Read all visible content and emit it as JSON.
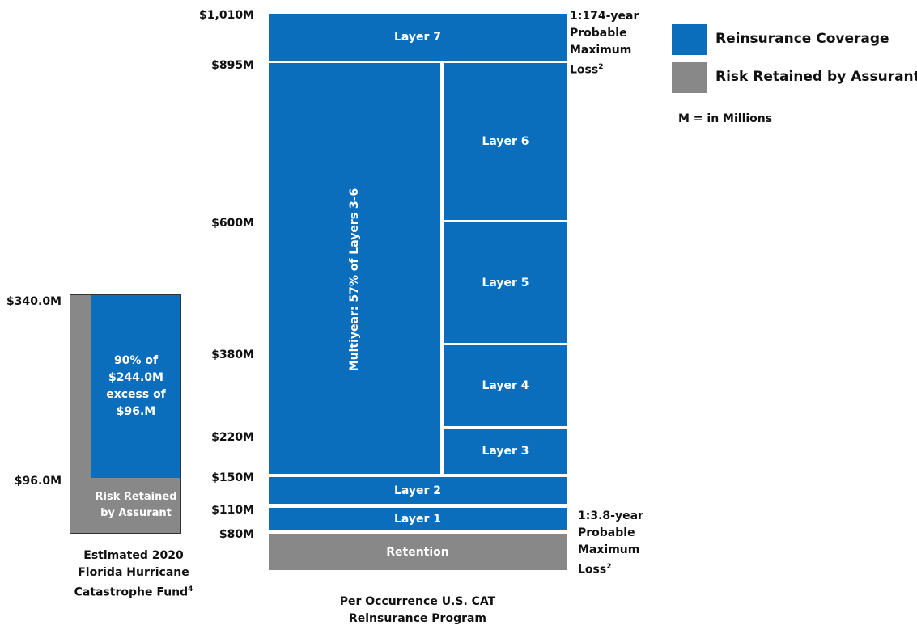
{
  "legend": {
    "items": [
      {
        "label": "Reinsurance Coverage",
        "color": "#0a6ebd"
      },
      {
        "label": "Risk Retained by Assurant",
        "color": "#888888"
      }
    ],
    "units_note": "M = in Millions"
  },
  "fund": {
    "top_label": "$340.0M",
    "bottom_label": "$96.0M",
    "coverage_line1": "90% of",
    "coverage_line2": "$244.0M",
    "coverage_line3": "excess of",
    "coverage_line4": "$96.M",
    "retained_line1": "Risk Retained",
    "retained_line2": "by Assurant",
    "caption_line1": "Estimated 2020",
    "caption_line2": "Florida Hurricane",
    "caption_line3": "Catastrophe Fund",
    "caption_sup": "4"
  },
  "program": {
    "y_labels": [
      "$1,010M",
      "$895M",
      "$600M",
      "$380M",
      "$220M",
      "$150M",
      "$110M",
      "$80M"
    ],
    "layer7": "Layer 7",
    "layer6": "Layer 6",
    "layer5": "Layer 5",
    "layer4": "Layer 4",
    "layer3": "Layer 3",
    "layer2": "Layer 2",
    "layer1": "Layer 1",
    "retention": "Retention",
    "multiyear": "Multiyear: 57% of Layers 3-6",
    "top_note_line1": "1:174-year",
    "top_note_line2": "Probable",
    "top_note_line3": "Maximum",
    "top_note_line4": "Loss",
    "top_note_sup": "2",
    "bottom_note_line1": "1:3.8-year",
    "bottom_note_line2": "Probable",
    "bottom_note_line3": "Maximum",
    "bottom_note_line4": "Loss",
    "bottom_note_sup": "2",
    "caption_line1": "Per Occurrence U.S. CAT",
    "caption_line2": "Reinsurance Program"
  }
}
